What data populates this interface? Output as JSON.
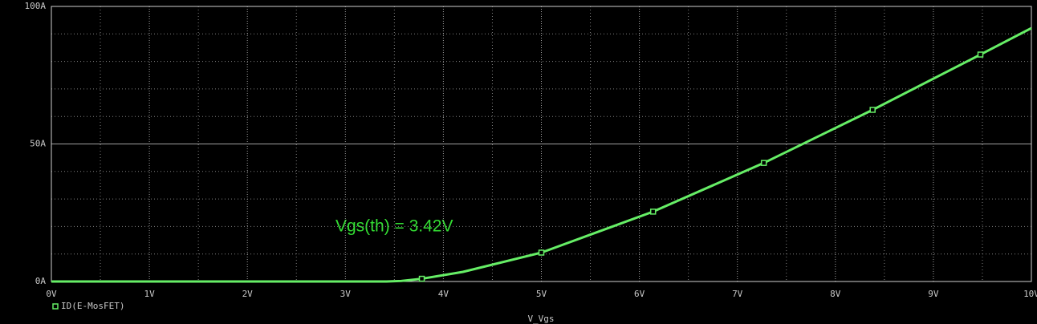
{
  "chart_data": {
    "type": "line",
    "x_label": "V_Vgs",
    "annotation": "Vgs(th) = 3.42V",
    "series": [
      {
        "name": "ID(E-MosFET)",
        "color": "#66ee66",
        "x": [
          0,
          1,
          2,
          3,
          3.42,
          3.57,
          3.78,
          4.2,
          5,
          6.14,
          7.27,
          8.38,
          9.48,
          10
        ],
        "values": [
          0,
          0,
          0,
          0,
          0,
          0.2,
          1,
          3.5,
          10.5,
          25.4,
          43.1,
          62.4,
          82.5,
          92.1
        ]
      }
    ],
    "markers": {
      "x": [
        3.78,
        5,
        6.14,
        7.27,
        8.38,
        9.48
      ],
      "values": [
        1,
        10.5,
        25.4,
        43.1,
        62.4,
        82.5
      ]
    },
    "xlim": [
      0,
      10
    ],
    "ylim": [
      0,
      100
    ],
    "xticks": [
      {
        "value": 0,
        "label": "0V"
      },
      {
        "value": 1,
        "label": "1V"
      },
      {
        "value": 2,
        "label": "2V"
      },
      {
        "value": 3,
        "label": "3V"
      },
      {
        "value": 4,
        "label": "4V"
      },
      {
        "value": 5,
        "label": "5V"
      },
      {
        "value": 6,
        "label": "6V"
      },
      {
        "value": 7,
        "label": "7V"
      },
      {
        "value": 8,
        "label": "8V"
      },
      {
        "value": 9,
        "label": "9V"
      },
      {
        "value": 10,
        "label": "10V"
      }
    ],
    "yticks": [
      {
        "value": 0,
        "label": "0A"
      },
      {
        "value": 50,
        "label": "50A"
      },
      {
        "value": 100,
        "label": "100A"
      }
    ],
    "minor_xticks": [
      0.5,
      1.5,
      2.5,
      3.5,
      4.5,
      5.5,
      6.5,
      7.5,
      8.5,
      9.5
    ],
    "minor_yticks": [
      10,
      20,
      30,
      40,
      60,
      70,
      80,
      90
    ],
    "grid": true
  }
}
